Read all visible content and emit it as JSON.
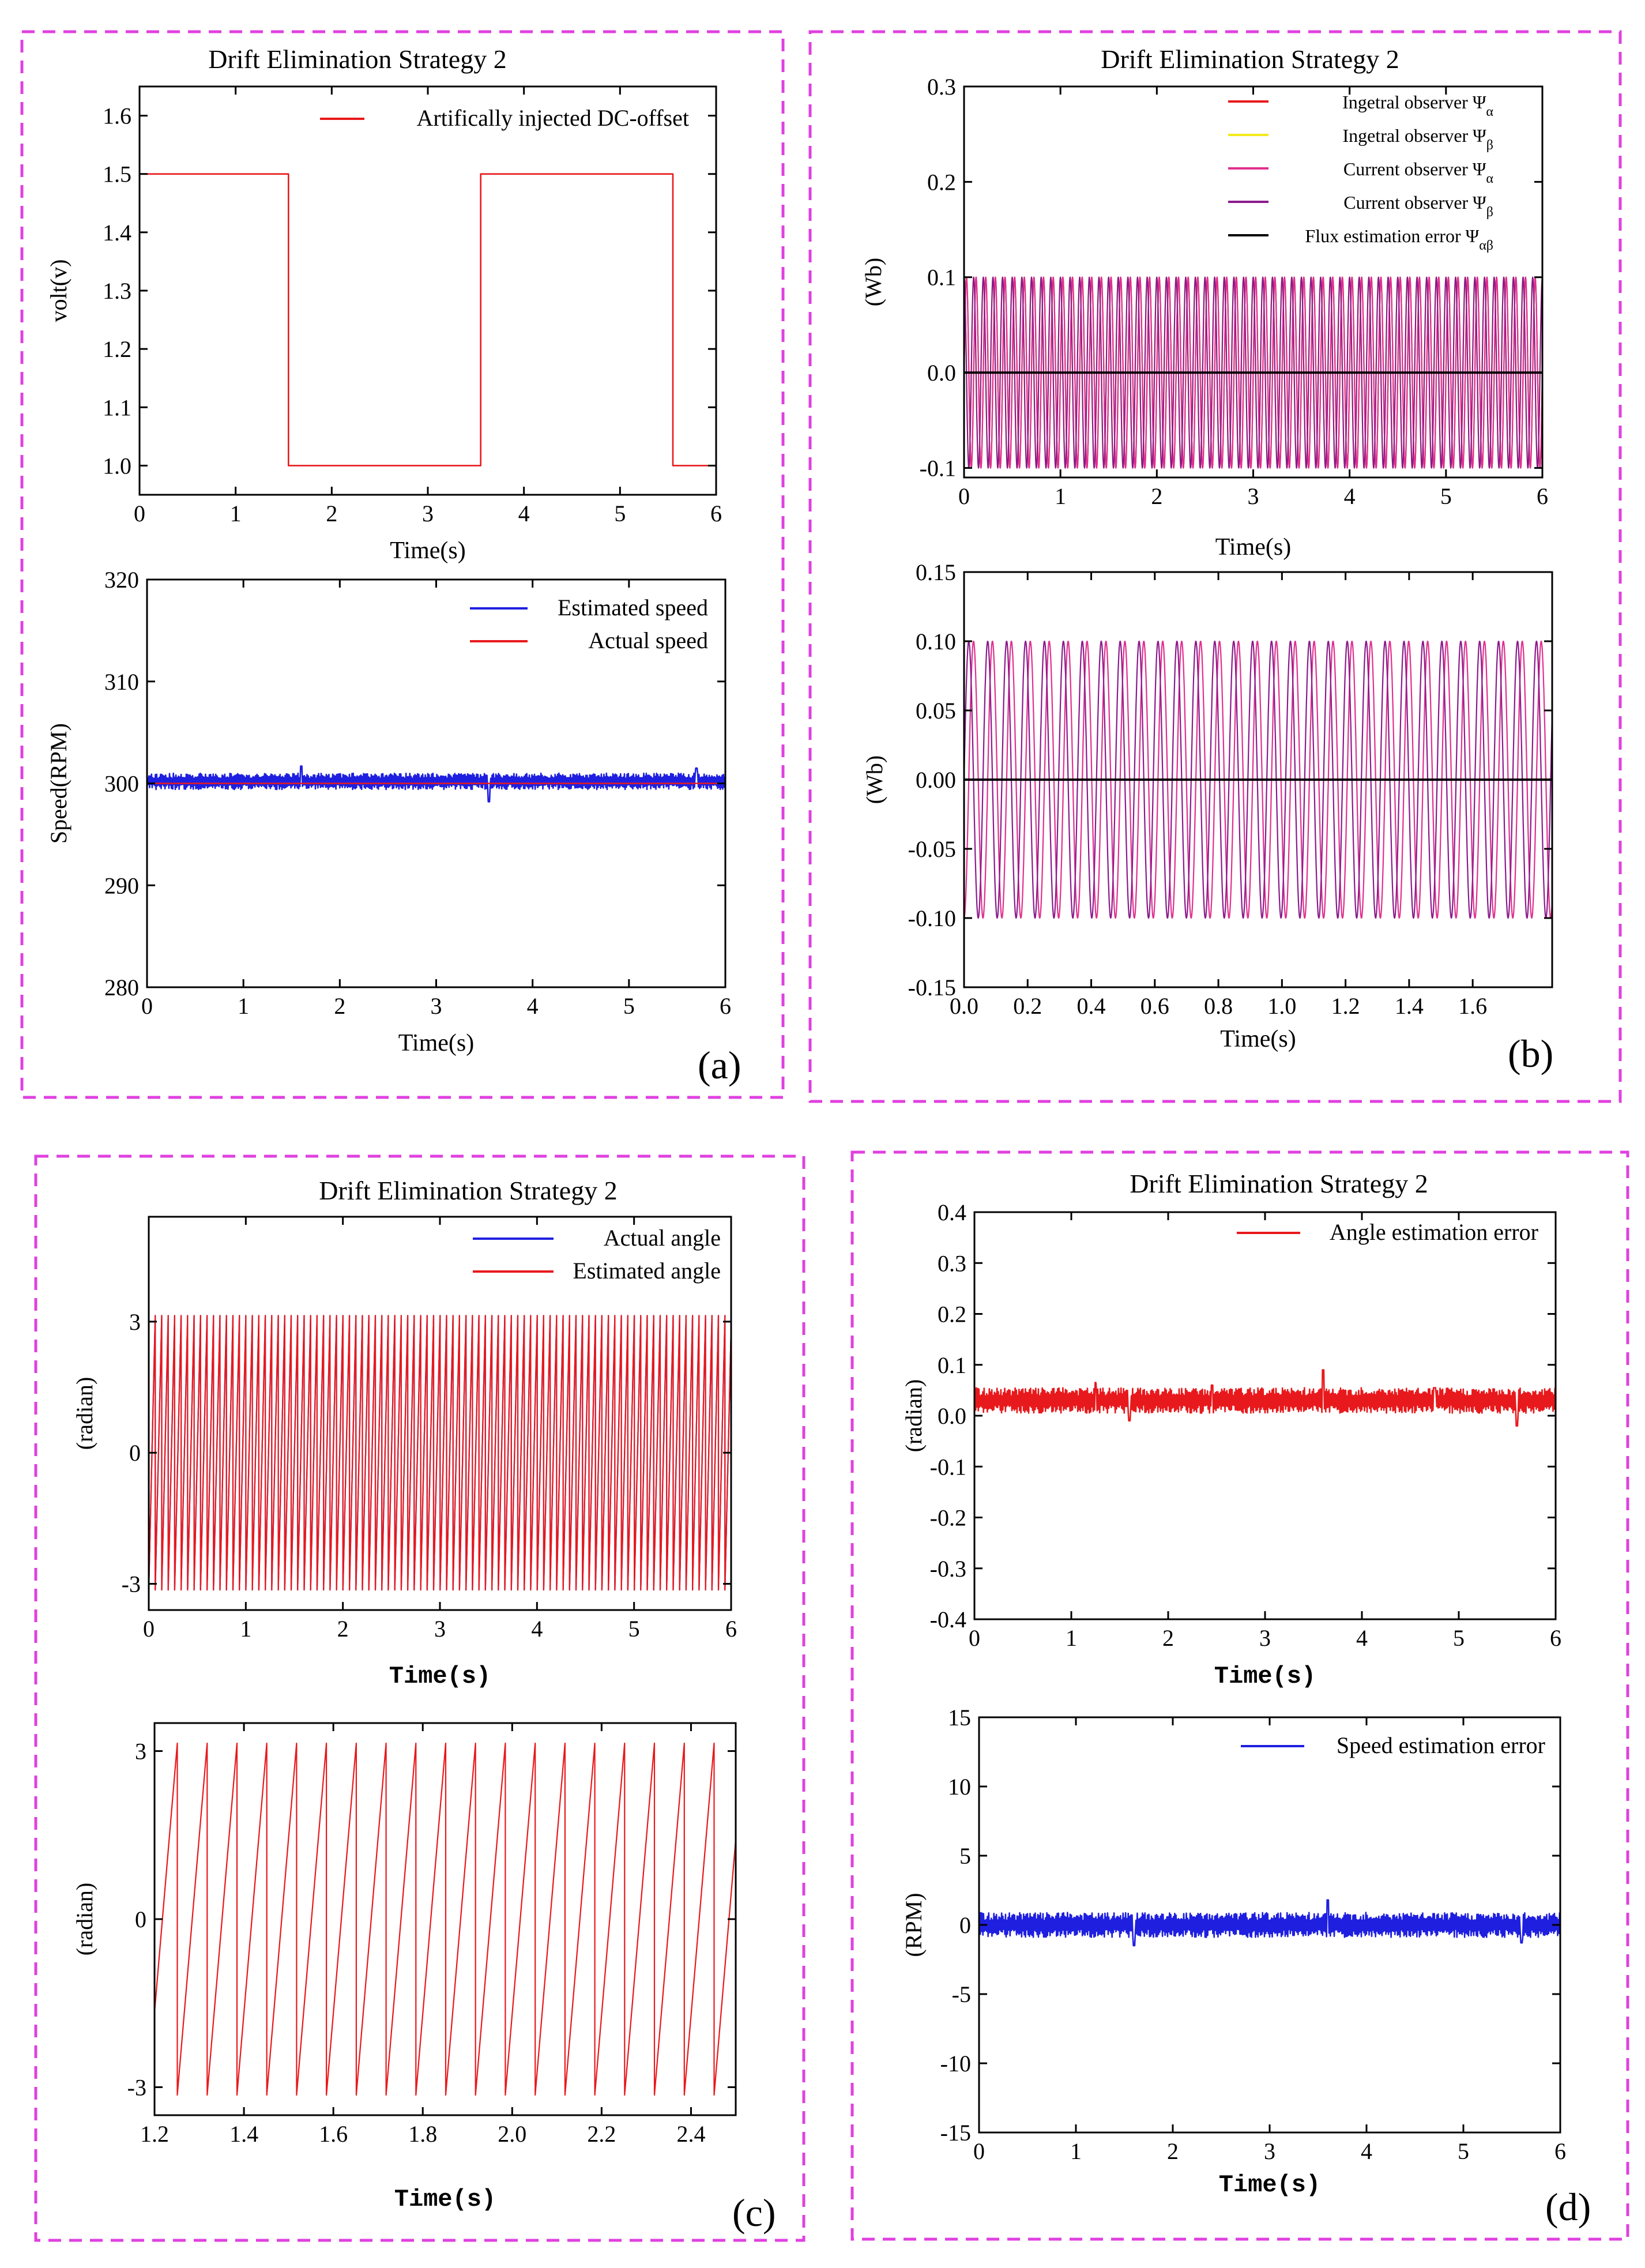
{
  "panels": [
    {
      "label": "(a)"
    },
    {
      "label": "(b)"
    },
    {
      "label": "(c)"
    },
    {
      "label": "(d)"
    }
  ],
  "chart_data": [
    {
      "id": "a1",
      "panel": "(a)",
      "type": "line",
      "title": "Drift Elimination Strategy 2",
      "xlabel": "Time(s)",
      "ylabel": "volt(v)",
      "xlim": [
        0,
        6
      ],
      "ylim": [
        0.95,
        1.65
      ],
      "xticks": [
        0,
        1,
        2,
        3,
        4,
        5,
        6
      ],
      "xticklabels": [
        "0",
        "1",
        "2",
        "3",
        "4",
        "5",
        "6"
      ],
      "yticks": [
        1.0,
        1.1,
        1.2,
        1.3,
        1.4,
        1.5,
        1.6
      ],
      "yticklabels": [
        "1.0",
        "1.1",
        "1.2",
        "1.3",
        "1.4",
        "1.5",
        "1.6"
      ],
      "legend_position": "top-right",
      "series": [
        {
          "name": "Artifically injected DC-offset",
          "color": "#e8191c",
          "kind": "steps",
          "x": [
            0,
            1.55,
            1.55,
            3.55,
            3.55,
            5.55,
            5.55,
            6.0
          ],
          "y": [
            1.5,
            1.5,
            1.0,
            1.0,
            1.5,
            1.5,
            1.0,
            1.0
          ]
        }
      ]
    },
    {
      "id": "a2",
      "panel": "(a)",
      "type": "line",
      "title": "",
      "xlabel": "Time(s)",
      "ylabel": "Speed(RPM)",
      "xlim": [
        0,
        6
      ],
      "ylim": [
        280,
        320
      ],
      "xticks": [
        0,
        1,
        2,
        3,
        4,
        5,
        6
      ],
      "xticklabels": [
        "0",
        "1",
        "2",
        "3",
        "4",
        "5",
        "6"
      ],
      "yticks": [
        280,
        290,
        300,
        310,
        320
      ],
      "yticklabels": [
        "280",
        "290",
        "300",
        "310",
        "320"
      ],
      "legend_position": "top-right",
      "series": [
        {
          "name": "Estimated speed",
          "color": "#1f1fe0",
          "kind": "noise",
          "center": 300.2,
          "amplitude": 0.8,
          "spikes": [
            [
              1.6,
              1.5
            ],
            [
              3.55,
              -2.0
            ],
            [
              5.7,
              1.3
            ]
          ]
        },
        {
          "name": "Actual speed",
          "color": "#e8191c",
          "kind": "const",
          "value": 300
        }
      ]
    },
    {
      "id": "b1",
      "panel": "(b)",
      "type": "line",
      "title": "Drift Elimination Strategy 2",
      "xlabel": "Time(s)",
      "ylabel": "(Wb)",
      "xlim": [
        0,
        6
      ],
      "ylim": [
        -0.11,
        0.3
      ],
      "xticks": [
        0,
        1,
        2,
        3,
        4,
        5,
        6
      ],
      "xticklabels": [
        "0",
        "1",
        "2",
        "3",
        "4",
        "5",
        "6"
      ],
      "yticks": [
        -0.1,
        0.0,
        0.1,
        0.2,
        0.3
      ],
      "yticklabels": [
        "-0.1",
        "0.0",
        "0.1",
        "0.2",
        "0.3"
      ],
      "legend_position": "top-right",
      "series": [
        {
          "name": "Ingetral observer Ψ",
          "subscript": "α",
          "color": "#e8191c",
          "kind": "sine",
          "amplitude": 0.1,
          "frequency": 10,
          "phase": 0
        },
        {
          "name": "Ingetral observer Ψ",
          "subscript": "β",
          "color": "#f2ea1a",
          "kind": "sine",
          "amplitude": 0.1,
          "frequency": 10,
          "phase": 1.5708
        },
        {
          "name": "Current observer Ψ",
          "subscript": "α",
          "color": "#e0308f",
          "kind": "sine",
          "amplitude": 0.1,
          "frequency": 10,
          "phase": 0
        },
        {
          "name": "Current observer Ψ",
          "subscript": "β",
          "color": "#8b1a8b",
          "kind": "sine",
          "amplitude": 0.1,
          "frequency": 10,
          "phase": 1.5708
        },
        {
          "name": "Flux estimation error Ψ",
          "subscript": "αβ",
          "color": "#000000",
          "kind": "const",
          "value": 0
        }
      ]
    },
    {
      "id": "b2",
      "panel": "(b)",
      "type": "line",
      "title": "",
      "xlabel": "Time(s)",
      "ylabel": "(Wb)",
      "xlim": [
        0,
        1.85
      ],
      "ylim": [
        -0.15,
        0.15
      ],
      "xticks": [
        0.0,
        0.2,
        0.4,
        0.6,
        0.8,
        1.0,
        1.2,
        1.4,
        1.6
      ],
      "xticklabels": [
        "0.0",
        "0.2",
        "0.4",
        "0.6",
        "0.8",
        "1.0",
        "1.2",
        "1.4",
        "1.6"
      ],
      "yticks": [
        -0.15,
        -0.1,
        -0.05,
        0.0,
        0.05,
        0.1,
        0.15
      ],
      "yticklabels": [
        "-0.15",
        "-0.10",
        "-0.05",
        "0.00",
        "0.05",
        "0.10",
        "0.15"
      ],
      "series": [
        {
          "name": "Ψα",
          "color": "#e0308f",
          "kind": "sine",
          "amplitude": 0.1,
          "frequency": 16.8,
          "phase": -1.5708
        },
        {
          "name": "Ψβ",
          "color": "#8b1a8b",
          "kind": "sine",
          "amplitude": 0.1,
          "frequency": 16.8,
          "phase": 0
        },
        {
          "name": "Flux estimation error",
          "color": "#000000",
          "kind": "const",
          "value": 0
        }
      ]
    },
    {
      "id": "c1",
      "panel": "(c)",
      "type": "line",
      "title": "Drift Elimination Strategy 2",
      "xlabel": "Time(s)",
      "ylabel": "(radian)",
      "xlim": [
        0,
        6
      ],
      "ylim": [
        -3.6,
        5.4
      ],
      "xticks": [
        0,
        1,
        2,
        3,
        4,
        5,
        6
      ],
      "xticklabels": [
        "0",
        "1",
        "2",
        "3",
        "4",
        "5",
        "6"
      ],
      "yticks": [
        -3,
        0,
        3
      ],
      "yticklabels": [
        "-3",
        "0",
        "3"
      ],
      "legend_position": "top-right",
      "series": [
        {
          "name": "Actual angle",
          "color": "#1f1fe0",
          "kind": "sawtooth",
          "period": 0.0667,
          "amplitude": 3.14
        },
        {
          "name": "Estimated angle",
          "color": "#e8191c",
          "kind": "sawtooth",
          "period": 0.0667,
          "amplitude": 3.14
        }
      ]
    },
    {
      "id": "c2",
      "panel": "(c)",
      "type": "line",
      "title": "",
      "xlabel": "Time(s)",
      "ylabel": "(radian)",
      "xlim": [
        1.2,
        2.5
      ],
      "ylim": [
        -3.5,
        3.5
      ],
      "xticks": [
        1.2,
        1.4,
        1.6,
        1.8,
        2.0,
        2.2,
        2.4
      ],
      "xticklabels": [
        "1.2",
        "1.4",
        "1.6",
        "1.8",
        "2.0",
        "2.2",
        "2.4"
      ],
      "yticks": [
        -3,
        0,
        3
      ],
      "yticklabels": [
        "-3",
        "0",
        "3"
      ],
      "series": [
        {
          "name": "Estimated angle",
          "color": "#e8191c",
          "kind": "sawtooth",
          "period": 0.0667,
          "amplitude": 3.14,
          "offset_x": 1.251
        }
      ]
    },
    {
      "id": "d1",
      "panel": "(d)",
      "type": "line",
      "title": "Drift Elimination Strategy 2",
      "xlabel": "Time(s)",
      "ylabel": "(radian)",
      "xlim": [
        0,
        6
      ],
      "ylim": [
        -0.4,
        0.4
      ],
      "xticks": [
        0,
        1,
        2,
        3,
        4,
        5,
        6
      ],
      "xticklabels": [
        "0",
        "1",
        "2",
        "3",
        "4",
        "5",
        "6"
      ],
      "yticks": [
        -0.4,
        -0.3,
        -0.2,
        -0.1,
        0.0,
        0.1,
        0.2,
        0.3,
        0.4
      ],
      "yticklabels": [
        "-0.4",
        "-0.3",
        "-0.2",
        "-0.1",
        "0.0",
        "0.1",
        "0.2",
        "0.3",
        "0.4"
      ],
      "legend_position": "top-right",
      "series": [
        {
          "name": "Angle estimation error",
          "color": "#e8191c",
          "kind": "noise",
          "center": 0.03,
          "amplitude": 0.025,
          "spikes": [
            [
              1.25,
              0.035
            ],
            [
              1.6,
              -0.04
            ],
            [
              2.45,
              0.03
            ],
            [
              3.6,
              0.06
            ],
            [
              4.75,
              0.025
            ],
            [
              5.6,
              -0.05
            ]
          ]
        }
      ]
    },
    {
      "id": "d2",
      "panel": "(d)",
      "type": "line",
      "title": "",
      "xlabel": "Time(s)",
      "ylabel": "(RPM)",
      "xlim": [
        0,
        6
      ],
      "ylim": [
        -15,
        15
      ],
      "xticks": [
        0,
        1,
        2,
        3,
        4,
        5,
        6
      ],
      "xticklabels": [
        "0",
        "1",
        "2",
        "3",
        "4",
        "5",
        "6"
      ],
      "yticks": [
        -15,
        -10,
        -5,
        0,
        5,
        10,
        15
      ],
      "yticklabels": [
        "-15",
        "-10",
        "-5",
        "0",
        "5",
        "10",
        "15"
      ],
      "legend_position": "top-right",
      "series": [
        {
          "name": "Speed estimation error",
          "color": "#1f1fe0",
          "kind": "noise",
          "center": 0.0,
          "amplitude": 0.9,
          "spikes": [
            [
              1.6,
              -1.5
            ],
            [
              3.6,
              1.8
            ],
            [
              5.6,
              -1.3
            ]
          ]
        }
      ]
    }
  ]
}
